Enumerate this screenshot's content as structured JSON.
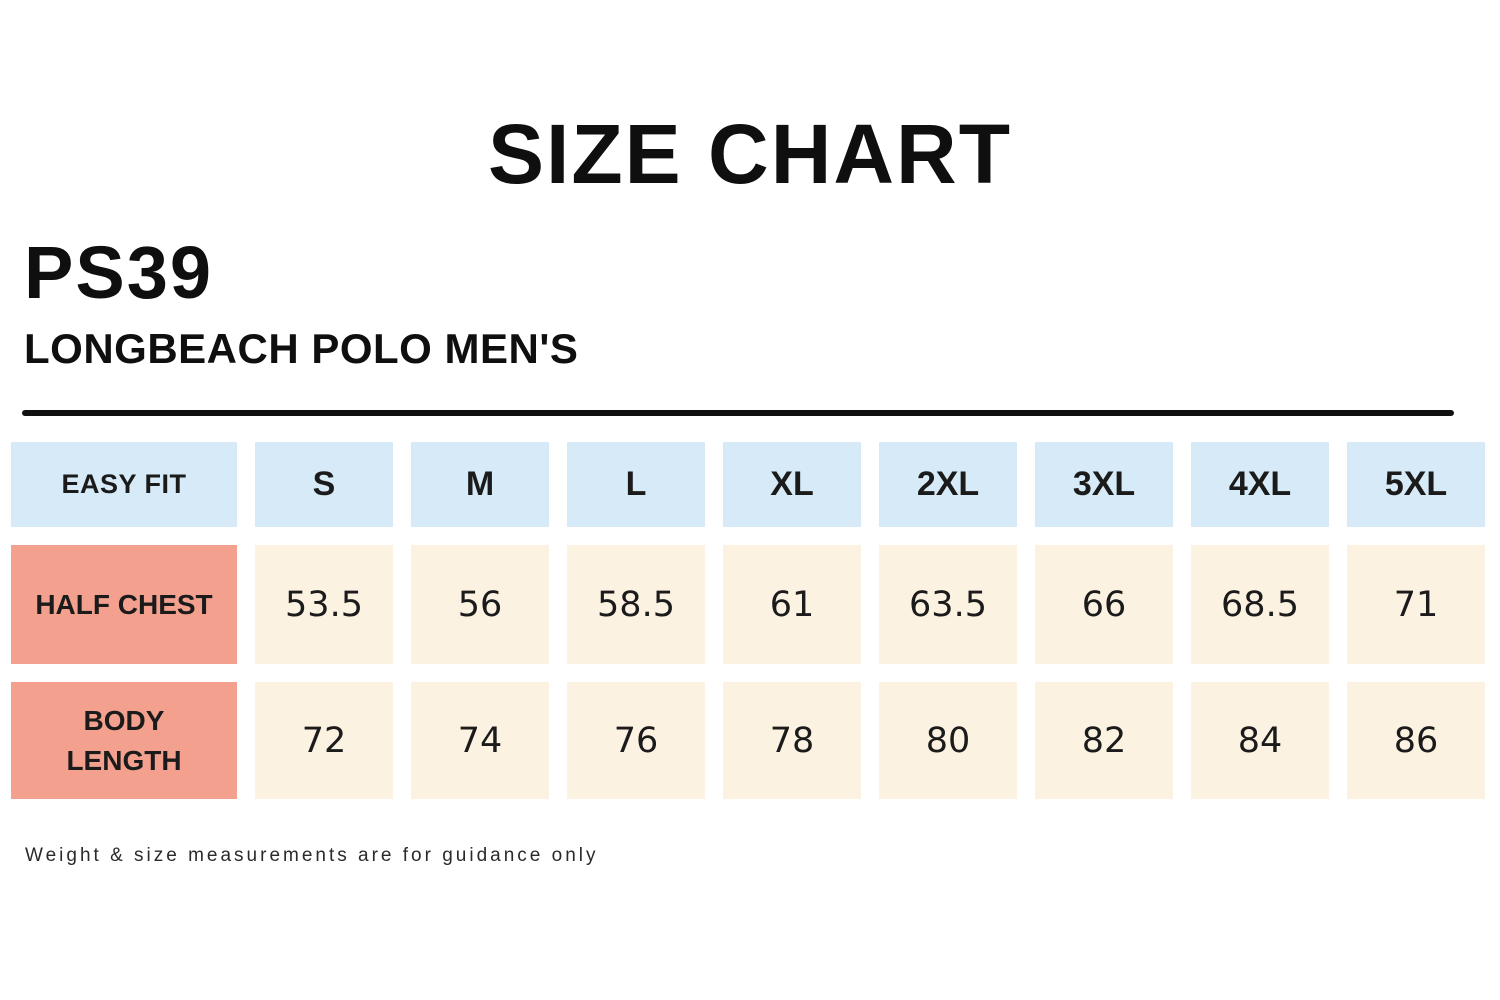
{
  "header": {
    "title": "SIZE CHART",
    "product_code": "PS39",
    "product_name": "LONGBEACH POLO MEN'S"
  },
  "chart_data": {
    "type": "table",
    "title": "SIZE CHART",
    "subtitle": "PS39 LONGBEACH POLO MEN'S",
    "fit_label": "EASY FIT",
    "columns": [
      "S",
      "M",
      "L",
      "XL",
      "2XL",
      "3XL",
      "4XL",
      "5XL"
    ],
    "rows": [
      {
        "label": "HALF CHEST",
        "values": [
          53.5,
          56,
          58.5,
          61,
          63.5,
          66,
          68.5,
          71
        ]
      },
      {
        "label": "BODY LENGTH",
        "values": [
          72,
          74,
          76,
          78,
          80,
          82,
          84,
          86
        ]
      }
    ],
    "layout": {
      "legend_position": "none",
      "grid": "off",
      "first_column_role": "row-labels"
    }
  },
  "footnote": "Weight & size measurements are for guidance only",
  "colors": {
    "size_header_fill": "#d6ebf7",
    "row_label_fill": "#f3a18e",
    "value_cell_fill": "#fcf2e1",
    "text": "#0f0f0f",
    "divider": "#111111",
    "background": "#ffffff"
  }
}
